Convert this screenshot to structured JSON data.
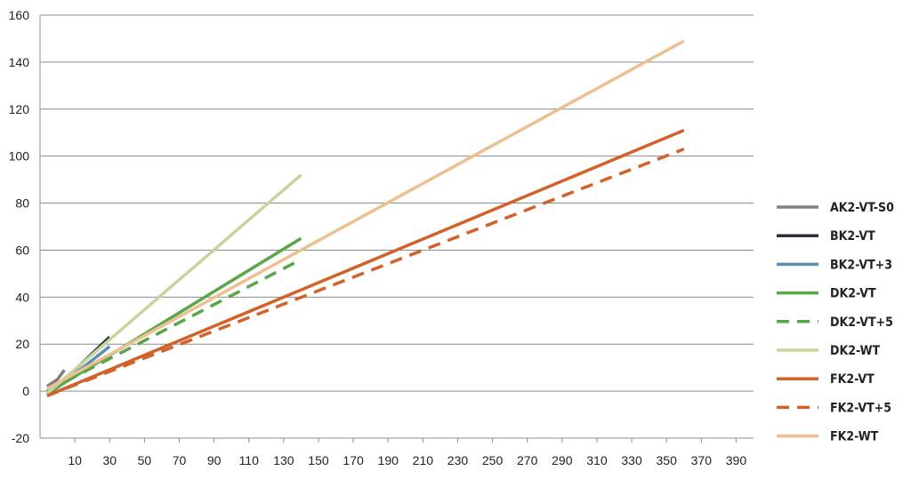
{
  "chart_data": {
    "type": "line",
    "title": "",
    "xlabel": "",
    "ylabel": "",
    "xlim": [
      -10,
      400
    ],
    "ylim": [
      -20,
      160
    ],
    "x_ticks": [
      10,
      30,
      50,
      70,
      90,
      110,
      130,
      150,
      170,
      190,
      210,
      230,
      250,
      270,
      290,
      310,
      330,
      350,
      370,
      390
    ],
    "y_ticks": [
      -20,
      0,
      20,
      40,
      60,
      80,
      100,
      120,
      140,
      160
    ],
    "grid": "horizontal",
    "legend_position": "right",
    "series": [
      {
        "name": "AK2-VT-S0",
        "color": "#808080",
        "dash": "solid",
        "x": [
          -6,
          0,
          4
        ],
        "y": [
          2,
          5,
          9
        ]
      },
      {
        "name": "BK2-VT",
        "color": "#2a2f3f",
        "dash": "solid",
        "x": [
          -6,
          0,
          30
        ],
        "y": [
          -1,
          2,
          23
        ]
      },
      {
        "name": "BK2-VT+3",
        "color": "#5b8fb9",
        "dash": "solid",
        "x": [
          -6,
          0,
          30
        ],
        "y": [
          -1,
          1.5,
          19
        ]
      },
      {
        "name": "DK2-VT",
        "color": "#5aa64a",
        "dash": "solid",
        "x": [
          -6,
          140
        ],
        "y": [
          -1,
          65
        ]
      },
      {
        "name": "DK2-VT+5",
        "color": "#5aa64a",
        "dash": "dashed",
        "x": [
          -6,
          140
        ],
        "y": [
          0,
          56
        ]
      },
      {
        "name": "DK2-WT",
        "color": "#c3d69b",
        "dash": "solid",
        "x": [
          -6,
          140
        ],
        "y": [
          -1,
          92
        ]
      },
      {
        "name": "FK2-VT",
        "color": "#d2622a",
        "dash": "solid",
        "x": [
          -6,
          360
        ],
        "y": [
          -2,
          111
        ]
      },
      {
        "name": "FK2-VT+5",
        "color": "#d2622a",
        "dash": "dashed",
        "x": [
          -6,
          360
        ],
        "y": [
          -2,
          103
        ]
      },
      {
        "name": "FK2-WT",
        "color": "#edbf91",
        "dash": "solid",
        "x": [
          -6,
          360
        ],
        "y": [
          1,
          149
        ]
      }
    ]
  }
}
